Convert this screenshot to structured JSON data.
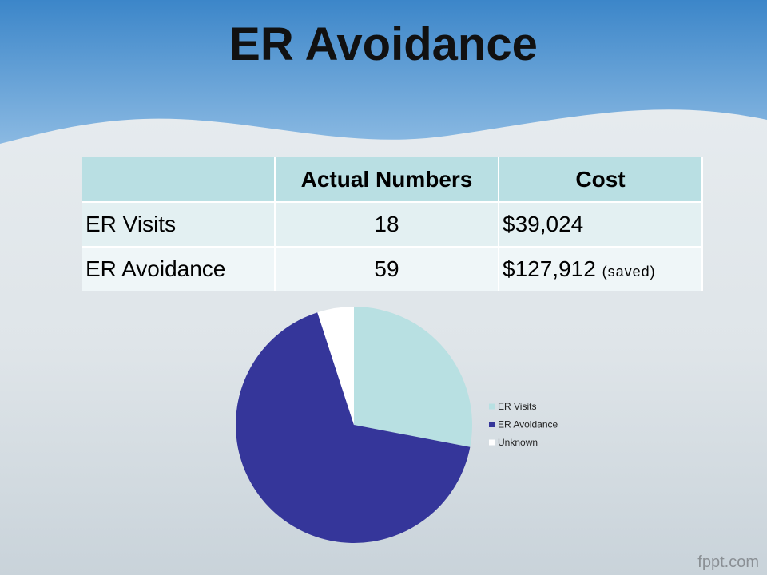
{
  "title": "ER Avoidance",
  "table": {
    "header": [
      "Actual Numbers",
      "Cost"
    ],
    "rows": [
      [
        "ER Visits",
        18,
        "$39,024"
      ],
      [
        "ER Avoidance",
        59,
        "$127,912"
      ]
    ],
    "note": "(saved)"
  },
  "chart_data": {
    "type": "pie",
    "categories": [
      "ER Visits",
      "ER Avoidance",
      "Unknown"
    ],
    "values": [
      28,
      67,
      5
    ],
    "colors": [
      "#b8e0e2",
      "#35369a",
      "#ffffff"
    ],
    "legend": "right"
  },
  "watermark": "fppt.com"
}
